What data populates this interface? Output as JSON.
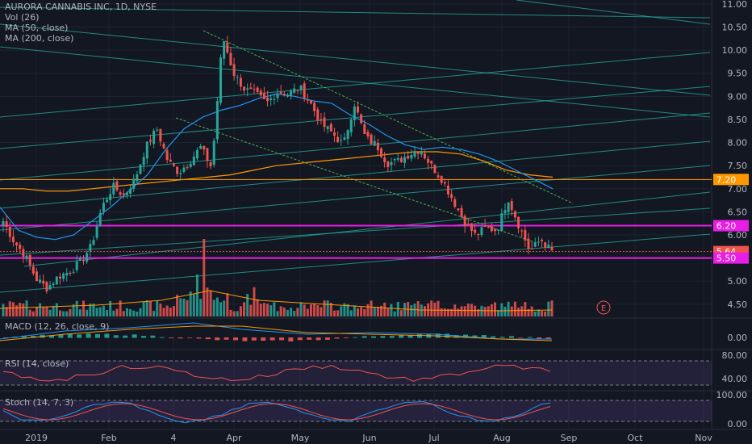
{
  "legend": {
    "title": "AURORA CANNABIS INC, 1D, NYSE",
    "vol": "Vol (26)",
    "ma50": "MA (50, close)",
    "ma200": "MA (200, close)"
  },
  "panes": {
    "macd": "MACD (12, 26, close, 9)",
    "rsi": "RSI (14, close)",
    "stoch": "Stoch (14, 7, 3)"
  },
  "earnings_marker": "E",
  "colors": {
    "background": "#131722",
    "up": "#26a69a",
    "down": "#ef5350",
    "ma50": "#2196f3",
    "ma200": "#ff9800",
    "trend_green": "#4caf50",
    "magenta": "#e91ee6",
    "orange_level": "#ff9800"
  },
  "chart_data": {
    "type": "candlestick",
    "title": "AURORA CANNABIS INC, 1D, NYSE",
    "ylim": [
      4.2,
      11.05
    ],
    "price_axis_ticks": [
      "11.00",
      "10.50",
      "10.00",
      "9.50",
      "9.00",
      "8.50",
      "8.00",
      "7.50",
      "7.00",
      "6.50",
      "6.00",
      "5.00",
      "4.50"
    ],
    "x_axis_labels": [
      "2019",
      "Feb",
      "4",
      "Apr",
      "May",
      "Jun",
      "Jul",
      "Aug",
      "Sep",
      "Oct",
      "Nov"
    ],
    "price_levels": [
      {
        "label": "7.20",
        "value": 7.2,
        "color": "#ff9800"
      },
      {
        "label": "6.20",
        "value": 6.2,
        "color": "#e91ee6"
      },
      {
        "label": "5.64",
        "value": 5.64,
        "color": "#ef5350"
      },
      {
        "label": "5.50",
        "value": 5.5,
        "color": "#e91ee6"
      }
    ],
    "price_series": [
      6.3,
      5.85,
      5.55,
      5.05,
      4.85,
      5.1,
      5.2,
      5.4,
      5.75,
      6.6,
      7.05,
      6.85,
      7.2,
      7.9,
      8.3,
      7.6,
      7.35,
      7.6,
      7.9,
      7.45,
      10.3,
      9.5,
      9.15,
      9.05,
      8.85,
      9.1,
      9.05,
      9.2,
      8.85,
      8.4,
      8.2,
      7.95,
      8.85,
      8.1,
      7.95,
      7.55,
      7.6,
      7.75,
      7.85,
      7.5,
      7.2,
      6.75,
      6.3,
      6.0,
      6.15,
      6.1,
      6.8,
      6.2,
      5.65,
      5.9,
      5.64
    ],
    "ma50_series": [
      6.6,
      6.1,
      5.95,
      5.9,
      6.0,
      6.3,
      6.6,
      6.95,
      7.3,
      7.85,
      8.3,
      8.55,
      8.7,
      8.8,
      8.95,
      9.05,
      9.0,
      8.9,
      8.85,
      8.6,
      8.4,
      8.15,
      7.95,
      7.85,
      7.9,
      7.85,
      7.75,
      7.6,
      7.4,
      7.2,
      7.0
    ],
    "ma200_series": [
      7.0,
      7.0,
      6.95,
      6.95,
      7.0,
      7.05,
      7.1,
      7.15,
      7.2,
      7.25,
      7.3,
      7.4,
      7.5,
      7.55,
      7.6,
      7.65,
      7.7,
      7.75,
      7.8,
      7.8,
      7.75,
      7.6,
      7.4,
      7.3,
      7.25
    ],
    "volume_max_label": "Vol (26)",
    "macd": {
      "label": "MACD (12, 26, close, 9)",
      "ticks": [
        "0.00"
      ]
    },
    "rsi": {
      "label": "RSI (14, close)",
      "ticks": [
        "80.00",
        "40.00"
      ]
    },
    "stoch": {
      "label": "Stoch (14, 7, 3)",
      "ticks": [
        "100.00",
        "0.00"
      ]
    }
  }
}
